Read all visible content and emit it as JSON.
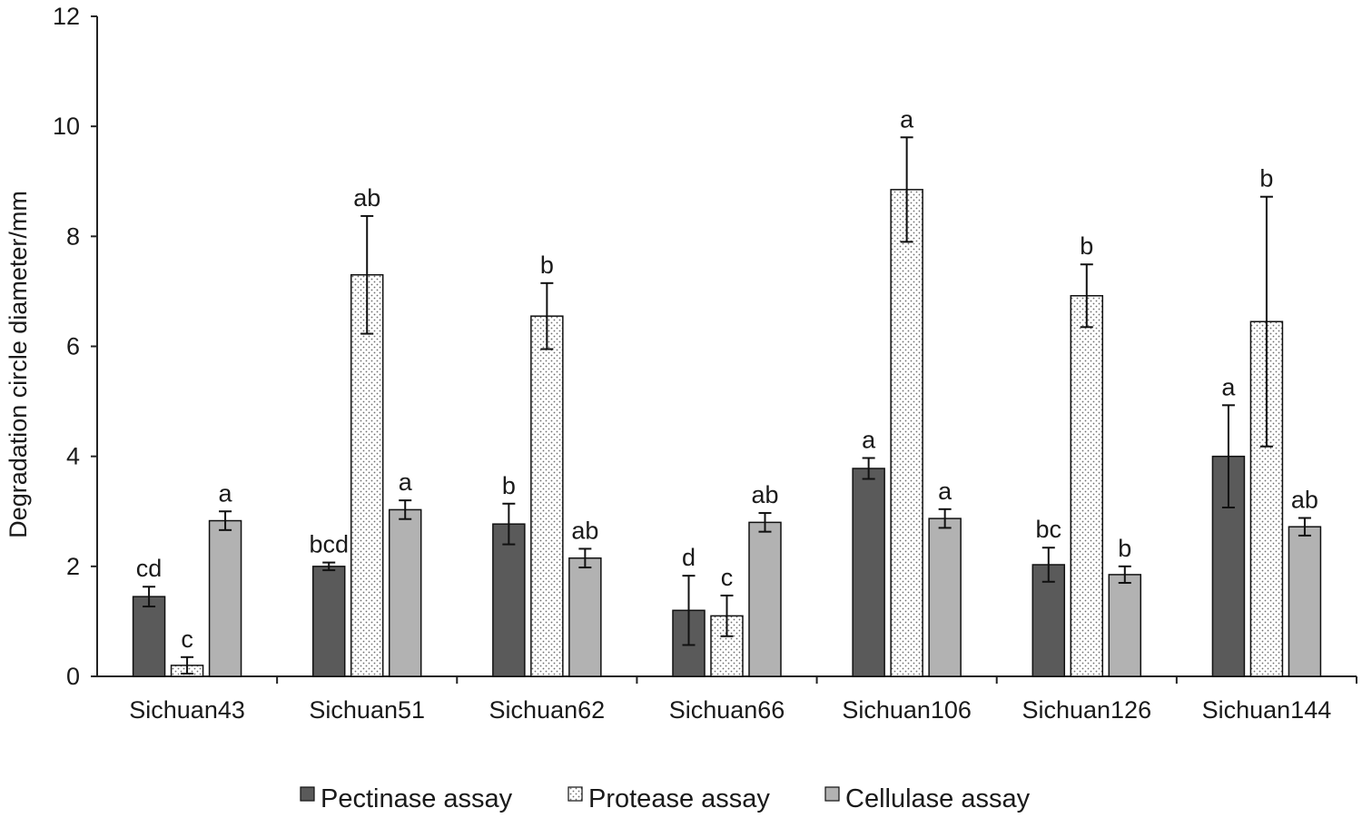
{
  "chart_data": {
    "type": "bar",
    "title": "",
    "xlabel": "",
    "ylabel": "Degradation circle diameter/mm",
    "ylim": [
      0,
      12
    ],
    "yticks": [
      0,
      2,
      4,
      6,
      8,
      10,
      12
    ],
    "categories": [
      "Sichuan43",
      "Sichuan51",
      "Sichuan62",
      "Sichuan66",
      "Sichuan106",
      "Sichuan126",
      "Sichuan144"
    ],
    "legend_position": "bottom",
    "series": [
      {
        "name": "Pectinase assay",
        "color": "#5a5a5a",
        "pattern": "solid",
        "values": [
          1.45,
          2.0,
          2.77,
          1.2,
          3.78,
          2.03,
          4.0
        ],
        "errors": [
          0.18,
          0.07,
          0.37,
          0.63,
          0.19,
          0.31,
          0.93
        ],
        "labels": [
          "cd",
          "bcd",
          "b",
          "d",
          "a",
          "bc",
          "a"
        ]
      },
      {
        "name": "Protease assay",
        "color": "#ffffff",
        "pattern": "dots",
        "values": [
          0.2,
          7.3,
          6.55,
          1.1,
          8.85,
          6.92,
          6.45
        ],
        "errors": [
          0.15,
          1.07,
          0.6,
          0.37,
          0.95,
          0.57,
          2.27
        ],
        "labels": [
          "c",
          "ab",
          "b",
          "c",
          "a",
          "b",
          "b"
        ]
      },
      {
        "name": "Cellulase assay",
        "color": "#b2b2b2",
        "pattern": "solid",
        "values": [
          2.83,
          3.03,
          2.15,
          2.8,
          2.87,
          1.85,
          2.72
        ],
        "errors": [
          0.17,
          0.17,
          0.17,
          0.17,
          0.17,
          0.15,
          0.16
        ],
        "labels": [
          "a",
          "a",
          "ab",
          "ab",
          "a",
          "b",
          "ab"
        ]
      }
    ]
  }
}
